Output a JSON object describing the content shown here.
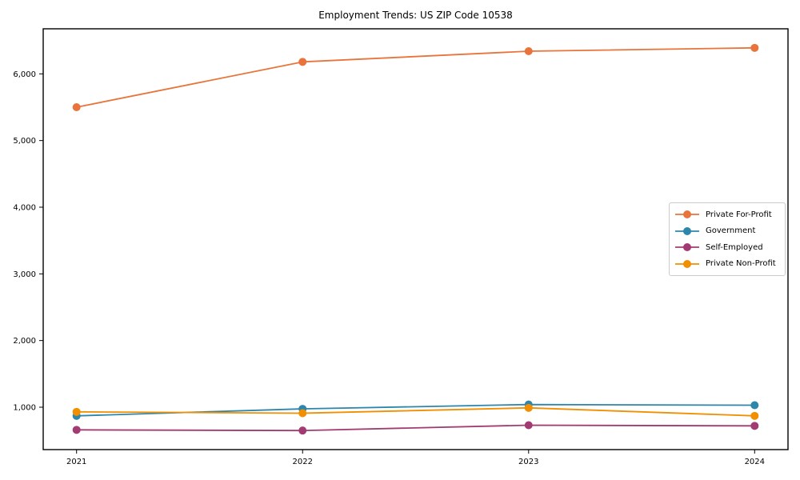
{
  "title": "Employment Trends: US ZIP Code 10538",
  "chart_data": {
    "type": "line",
    "title": "Employment Trends: US ZIP Code 10538",
    "xlabel": "",
    "ylabel": "",
    "x": [
      2021,
      2022,
      2023,
      2024
    ],
    "x_tick_labels": [
      "2021",
      "2022",
      "2023",
      "2024"
    ],
    "series": [
      {
        "name": "Private For-Profit",
        "color": "#e8743b",
        "values": [
          5500,
          6180,
          6340,
          6390
        ]
      },
      {
        "name": "Government",
        "color": "#2e86ab",
        "values": [
          870,
          975,
          1040,
          1030
        ]
      },
      {
        "name": "Self-Employed",
        "color": "#a23b72",
        "values": [
          660,
          650,
          730,
          720
        ]
      },
      {
        "name": "Private Non-Profit",
        "color": "#f18f01",
        "values": [
          930,
          910,
          990,
          870
        ]
      }
    ],
    "yticks": [
      1000,
      2000,
      3000,
      4000,
      5000,
      6000
    ],
    "ytick_labels": [
      "1,000",
      "2,000",
      "3,000",
      "4,000",
      "5,000",
      "6,000"
    ],
    "ylim": [
      364,
      6676
    ],
    "grid": false,
    "legend_position": "center right",
    "marker": "circle",
    "frame_color": "#000000",
    "background_color": "#ffffff"
  }
}
